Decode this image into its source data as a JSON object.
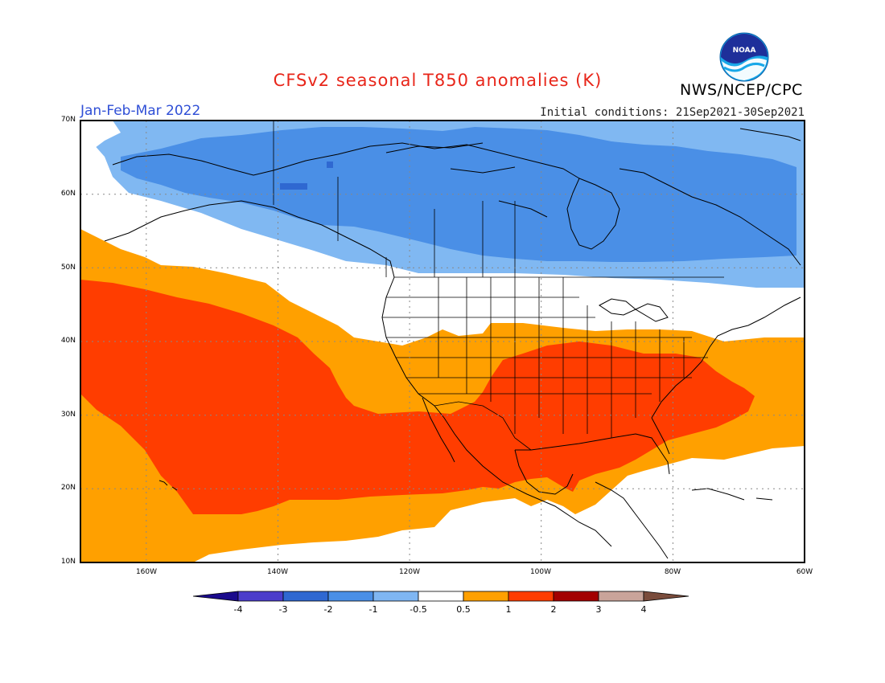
{
  "header": {
    "title": "CFSv2 seasonal T850 anomalies (K)",
    "agency": "NWS/NCEP/CPC",
    "logo_text": "NOAA",
    "season": "Jan-Feb-Mar 2022",
    "initial_conditions": "Initial conditions: 21Sep2021-30Sep2021"
  },
  "map": {
    "lon_range": [
      -170,
      -60
    ],
    "lat_range": [
      10,
      70
    ],
    "lat_ticks": [
      "10N",
      "20N",
      "30N",
      "40N",
      "50N",
      "60N",
      "70N"
    ],
    "lon_ticks": [
      "160W",
      "140W",
      "120W",
      "100W",
      "80W",
      "60W"
    ],
    "grid": true,
    "projection": "lat-lon"
  },
  "colorbar": {
    "labels": [
      "-4",
      "-3",
      "-2",
      "-1",
      "-0.5",
      "0.5",
      "1",
      "2",
      "3",
      "4"
    ],
    "colors": [
      "#1a0a8c",
      "#4b3dcb",
      "#2f68d1",
      "#4a8fe6",
      "#7fb6f2",
      "#ffffff",
      "#ffa000",
      "#ff3d00",
      "#a30000",
      "#c9a49a",
      "#7a4c3c"
    ]
  },
  "colors": {
    "light_blue": "#80b8f2",
    "medium_blue": "#4a8fe6",
    "dark_blue": "#2f68d1",
    "orange": "#ffa000",
    "red_orange": "#ff3d00",
    "title_red": "#e8261a",
    "season_blue": "#2f4fd6"
  }
}
